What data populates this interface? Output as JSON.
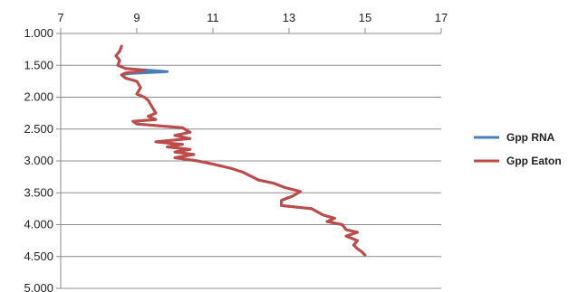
{
  "chart_data": {
    "type": "line",
    "title": "",
    "xlabel": "",
    "ylabel": "",
    "x_axis_position": "top",
    "xlim": [
      7,
      17
    ],
    "x_ticks": [
      7,
      9,
      11,
      13,
      15,
      17
    ],
    "x_tick_labels": [
      "7",
      "9",
      "11",
      "13",
      "15",
      "17"
    ],
    "ylim": [
      1.0,
      5.0
    ],
    "y_reversed": true,
    "y_ticks": [
      1.0,
      1.5,
      2.0,
      2.5,
      3.0,
      3.5,
      4.0,
      4.5,
      5.0
    ],
    "y_tick_labels": [
      "1.000",
      "1.500",
      "2.000",
      "2.500",
      "3.000",
      "3.500",
      "4.000",
      "4.500",
      "5.000"
    ],
    "grid": "horizontal",
    "legend_position": "right",
    "series": [
      {
        "name": "Gpp RNA",
        "color": "#4a7ebb",
        "points": [
          [
            8.6,
            1.2
          ],
          [
            8.55,
            1.28
          ],
          [
            8.45,
            1.35
          ],
          [
            8.55,
            1.42
          ],
          [
            8.5,
            1.5
          ],
          [
            8.7,
            1.55
          ],
          [
            9.8,
            1.6
          ],
          [
            8.8,
            1.63
          ],
          [
            8.6,
            1.65
          ],
          [
            8.7,
            1.7
          ],
          [
            9.0,
            1.75
          ],
          [
            9.1,
            1.85
          ],
          [
            9.0,
            1.95
          ],
          [
            9.2,
            2.0
          ],
          [
            9.3,
            2.05
          ],
          [
            9.4,
            2.15
          ],
          [
            9.5,
            2.25
          ],
          [
            9.3,
            2.3
          ],
          [
            9.5,
            2.35
          ],
          [
            8.9,
            2.38
          ],
          [
            9.0,
            2.42
          ],
          [
            9.6,
            2.45
          ],
          [
            10.2,
            2.48
          ],
          [
            10.4,
            2.55
          ],
          [
            10.0,
            2.6
          ],
          [
            10.4,
            2.65
          ],
          [
            9.5,
            2.7
          ],
          [
            10.2,
            2.74
          ],
          [
            9.8,
            2.78
          ],
          [
            10.4,
            2.82
          ],
          [
            10.0,
            2.86
          ],
          [
            10.5,
            2.9
          ],
          [
            10.0,
            2.95
          ],
          [
            10.6,
            3.0
          ],
          [
            11.0,
            3.05
          ],
          [
            11.5,
            3.12
          ],
          [
            11.8,
            3.18
          ],
          [
            12.0,
            3.24
          ],
          [
            12.2,
            3.3
          ],
          [
            12.6,
            3.35
          ],
          [
            12.9,
            3.42
          ],
          [
            13.3,
            3.48
          ],
          [
            13.1,
            3.55
          ],
          [
            12.8,
            3.62
          ],
          [
            12.8,
            3.7
          ],
          [
            13.6,
            3.75
          ],
          [
            13.9,
            3.85
          ],
          [
            14.2,
            3.9
          ],
          [
            14.0,
            3.95
          ],
          [
            14.4,
            4.0
          ],
          [
            14.5,
            4.08
          ],
          [
            14.8,
            4.12
          ],
          [
            14.5,
            4.18
          ],
          [
            14.8,
            4.25
          ],
          [
            14.7,
            4.32
          ],
          [
            14.8,
            4.38
          ],
          [
            14.9,
            4.42
          ],
          [
            15.0,
            4.48
          ]
        ]
      },
      {
        "name": "Gpp Eaton",
        "color": "#be4b48",
        "points": [
          [
            8.6,
            1.2
          ],
          [
            8.55,
            1.28
          ],
          [
            8.45,
            1.35
          ],
          [
            8.55,
            1.42
          ],
          [
            8.5,
            1.5
          ],
          [
            8.7,
            1.55
          ],
          [
            9.2,
            1.58
          ],
          [
            8.7,
            1.62
          ],
          [
            8.6,
            1.65
          ],
          [
            8.7,
            1.7
          ],
          [
            9.0,
            1.75
          ],
          [
            9.1,
            1.85
          ],
          [
            9.0,
            1.95
          ],
          [
            9.2,
            2.0
          ],
          [
            9.3,
            2.05
          ],
          [
            9.4,
            2.15
          ],
          [
            9.5,
            2.25
          ],
          [
            9.3,
            2.3
          ],
          [
            9.5,
            2.35
          ],
          [
            8.9,
            2.38
          ],
          [
            9.0,
            2.42
          ],
          [
            9.6,
            2.45
          ],
          [
            10.2,
            2.48
          ],
          [
            10.4,
            2.55
          ],
          [
            10.0,
            2.6
          ],
          [
            10.4,
            2.65
          ],
          [
            9.5,
            2.7
          ],
          [
            10.2,
            2.74
          ],
          [
            9.8,
            2.78
          ],
          [
            10.4,
            2.82
          ],
          [
            10.0,
            2.86
          ],
          [
            10.5,
            2.9
          ],
          [
            10.0,
            2.95
          ],
          [
            10.6,
            3.0
          ],
          [
            11.0,
            3.05
          ],
          [
            11.5,
            3.12
          ],
          [
            11.8,
            3.18
          ],
          [
            12.0,
            3.24
          ],
          [
            12.2,
            3.3
          ],
          [
            12.6,
            3.35
          ],
          [
            12.9,
            3.42
          ],
          [
            13.3,
            3.48
          ],
          [
            13.1,
            3.55
          ],
          [
            12.8,
            3.62
          ],
          [
            12.8,
            3.7
          ],
          [
            13.6,
            3.75
          ],
          [
            13.9,
            3.85
          ],
          [
            14.2,
            3.9
          ],
          [
            14.0,
            3.95
          ],
          [
            14.4,
            4.0
          ],
          [
            14.5,
            4.08
          ],
          [
            14.8,
            4.12
          ],
          [
            14.5,
            4.18
          ],
          [
            14.8,
            4.25
          ],
          [
            14.7,
            4.32
          ],
          [
            14.8,
            4.38
          ],
          [
            14.9,
            4.42
          ],
          [
            15.0,
            4.48
          ]
        ]
      }
    ]
  }
}
